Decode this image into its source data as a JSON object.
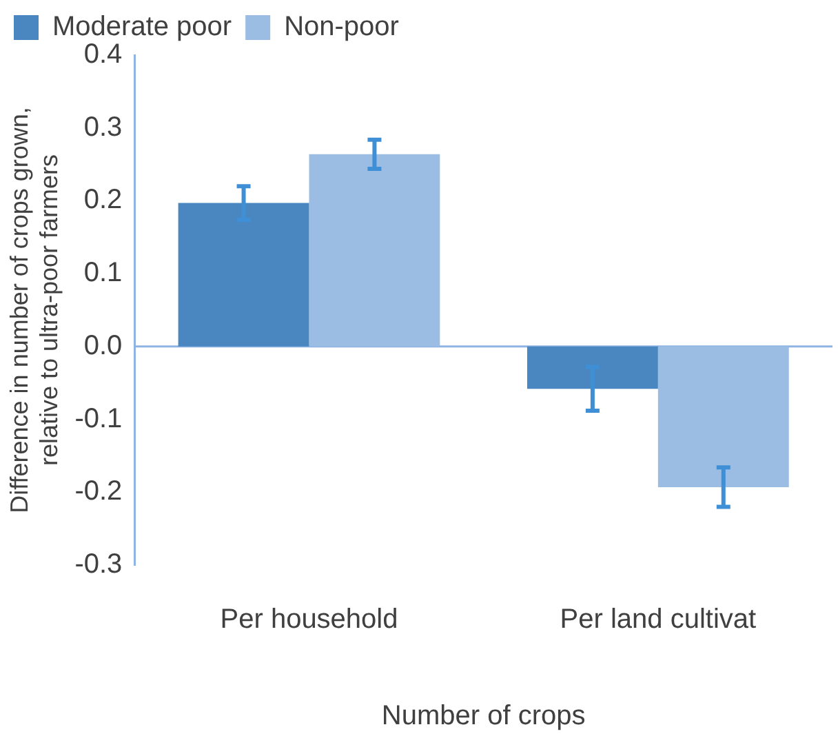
{
  "chart_data": {
    "type": "bar",
    "xlabel": "Number of crops",
    "ylabel": "Difference in number of crops grown,\nrelative to ultra-poor farmers",
    "categories": [
      "Per household",
      "Per land cultivat"
    ],
    "series": [
      {
        "name": "Moderate poor",
        "color": "#4a87c0",
        "values": [
          0.197,
          -0.058
        ],
        "errors": [
          0.023,
          0.03
        ]
      },
      {
        "name": "Non-poor",
        "color": "#9bbde3",
        "values": [
          0.264,
          -0.193
        ],
        "errors": [
          0.02,
          0.027
        ]
      }
    ],
    "ylim": [
      -0.3,
      0.4
    ],
    "yticks": [
      {
        "value": -0.3,
        "label": "-0.3"
      },
      {
        "value": -0.2,
        "label": "-0.2"
      },
      {
        "value": -0.1,
        "label": "-0.1"
      },
      {
        "value": 0,
        "label": "0.0"
      },
      {
        "value": 0.1,
        "label": "0.1"
      },
      {
        "value": 0.2,
        "label": "0.2"
      },
      {
        "value": 0.3,
        "label": "0.3"
      },
      {
        "value": 0.4,
        "label": "0.4"
      }
    ],
    "ref_lines": [
      {
        "axis": "y",
        "value": 0,
        "color": "#8eb4e3"
      }
    ],
    "grid": false,
    "legend": "top left"
  }
}
